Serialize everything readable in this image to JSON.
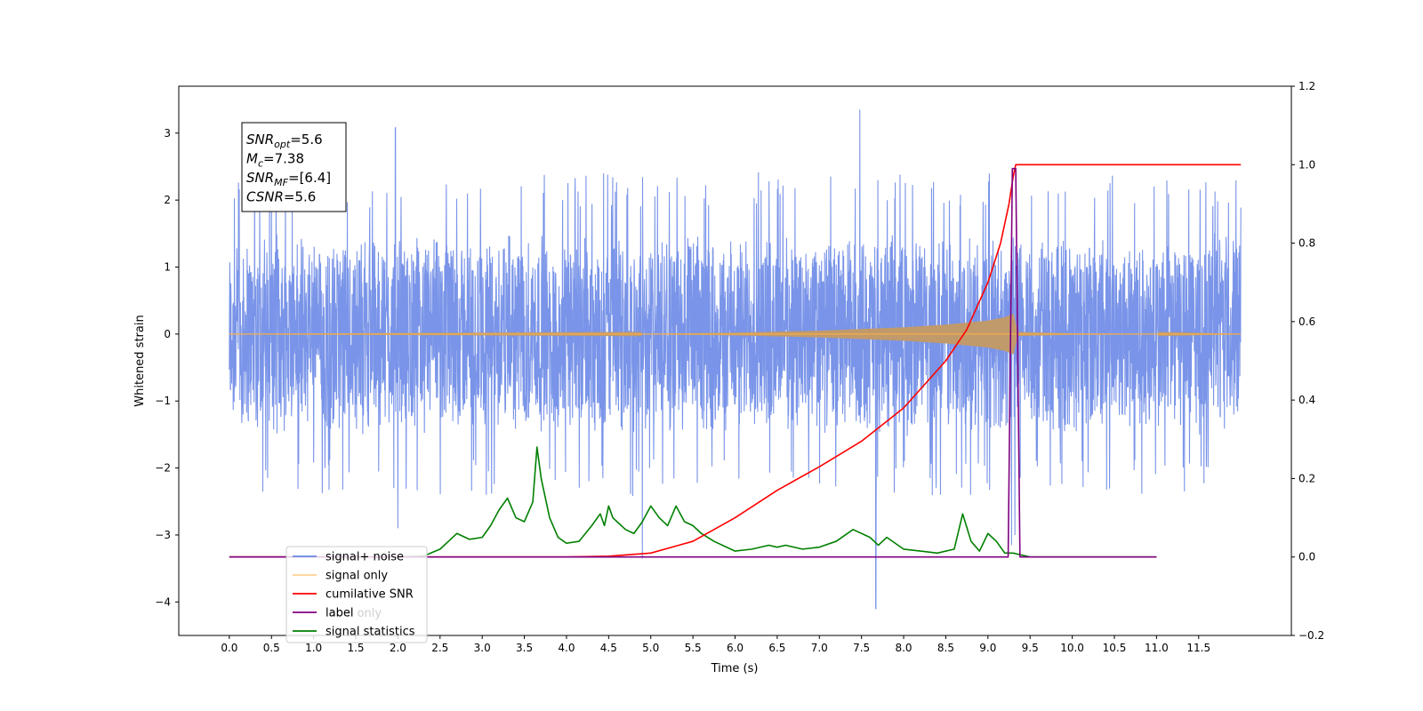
{
  "chart_data": {
    "type": "line",
    "xlabel": "Time (s)",
    "ylabel_left": "Whitened strain",
    "ylabel_right": "",
    "xlim": [
      -0.6,
      12.6
    ],
    "ylim_left": [
      -4.5,
      3.7
    ],
    "ylim_right": [
      -0.2,
      1.2
    ],
    "x_ticks": [
      0.0,
      0.5,
      1.0,
      1.5,
      2.0,
      2.5,
      3.0,
      3.5,
      4.0,
      4.5,
      5.0,
      5.5,
      6.0,
      6.5,
      7.0,
      7.5,
      8.0,
      8.5,
      9.0,
      9.5,
      10.0,
      10.5,
      11.0,
      11.5
    ],
    "x_tick_labels": [
      "0.0",
      "0.5",
      "1.0",
      "1.5",
      "2.0",
      "2.5",
      "3.0",
      "3.5",
      "4.0",
      "4.5",
      "5.0",
      "5.5",
      "6.0",
      "6.5",
      "7.0",
      "7.5",
      "8.0",
      "8.5",
      "9.0",
      "9.5",
      "10.0",
      "10.5",
      "11.0",
      "11.5"
    ],
    "y_ticks_left": [
      3,
      2,
      1,
      0,
      -1,
      -2,
      -3,
      -4
    ],
    "y_tick_labels_left": [
      "3",
      "2",
      "1",
      "0",
      "−1",
      "−2",
      "−3",
      "−4"
    ],
    "y_ticks_right": [
      1.2,
      1.0,
      0.8,
      0.6,
      0.4,
      0.2,
      0.0,
      -0.2
    ],
    "y_tick_labels_right": [
      "1.2",
      "1.0",
      "0.8",
      "0.6",
      "0.4",
      "0.2",
      "0.0",
      "−0.2"
    ],
    "grid": false,
    "legend_position": "lower-left",
    "annotation_box": {
      "lines": [
        {
          "sym": "SNR",
          "sub": "opt",
          "val": "=5.6"
        },
        {
          "sym": "M",
          "sub": "c",
          "val": "=7.38"
        },
        {
          "sym": "SNR",
          "sub": "MF",
          "val": "=[6.4]"
        },
        {
          "sym": "CSNR",
          "sub": "",
          "val": "=5.6"
        }
      ]
    },
    "series": [
      {
        "name": "signal+ noise",
        "axis": "left",
        "color": "#6a88e6",
        "kind": "noise",
        "t_range": [
          0.0,
          12.0
        ],
        "band_abs": 1.4,
        "typical_peak_abs": 2.2,
        "extremes": [
          {
            "x": 1.97,
            "y": 3.08
          },
          {
            "x": 2.0,
            "y": -2.9
          },
          {
            "x": 4.9,
            "y": -3.35
          },
          {
            "x": 7.48,
            "y": 3.35
          },
          {
            "x": 7.67,
            "y": -4.1
          },
          {
            "x": 9.28,
            "y": -3.15
          },
          {
            "x": 9.32,
            "y": -3.0
          }
        ]
      },
      {
        "name": "signal only",
        "axis": "left",
        "color": "#ffb347",
        "kind": "chirp",
        "t_range": [
          0.0,
          12.0
        ],
        "merger_time": 9.3,
        "envelope_x": [
          0.0,
          5.0,
          6.0,
          7.0,
          8.0,
          8.5,
          9.0,
          9.2,
          9.3,
          9.35,
          10.0,
          12.0
        ],
        "envelope_y": [
          0.0,
          0.005,
          0.02,
          0.05,
          0.1,
          0.14,
          0.2,
          0.25,
          0.3,
          0.03,
          0.01,
          0.0
        ]
      },
      {
        "name": "cumilative SNR",
        "axis": "right",
        "color": "#ff0000",
        "x": [
          0.0,
          4.0,
          4.5,
          5.0,
          5.5,
          6.0,
          6.5,
          7.0,
          7.5,
          8.0,
          8.5,
          8.75,
          9.0,
          9.15,
          9.25,
          9.3,
          9.33,
          12.0
        ],
        "y": [
          0.0,
          0.0,
          0.002,
          0.01,
          0.04,
          0.1,
          0.17,
          0.23,
          0.295,
          0.38,
          0.5,
          0.58,
          0.7,
          0.8,
          0.9,
          0.97,
          1.0,
          1.0
        ]
      },
      {
        "name": "label",
        "axis": "right",
        "color": "#800080",
        "x": [
          0.0,
          9.24,
          9.29,
          9.33,
          9.38,
          11.0
        ],
        "y": [
          0.0,
          0.0,
          0.99,
          0.99,
          0.0,
          0.0
        ]
      },
      {
        "name": "label only",
        "axis": "left",
        "color": "#cccccc",
        "kind": "legend-only"
      },
      {
        "name": "signal statistics",
        "axis": "right",
        "color": "#008000",
        "x": [
          0.0,
          2.0,
          2.3,
          2.5,
          2.7,
          2.85,
          3.0,
          3.1,
          3.2,
          3.3,
          3.4,
          3.5,
          3.6,
          3.65,
          3.7,
          3.8,
          3.9,
          4.0,
          4.15,
          4.3,
          4.4,
          4.45,
          4.5,
          4.55,
          4.6,
          4.7,
          4.8,
          4.9,
          5.0,
          5.1,
          5.2,
          5.3,
          5.4,
          5.5,
          5.6,
          5.75,
          6.0,
          6.2,
          6.4,
          6.5,
          6.6,
          6.8,
          7.0,
          7.2,
          7.4,
          7.6,
          7.7,
          7.8,
          8.0,
          8.2,
          8.4,
          8.6,
          8.7,
          8.8,
          8.9,
          9.0,
          9.1,
          9.2,
          9.3,
          9.5,
          11.0
        ],
        "y": [
          0.0,
          0.0,
          0.002,
          0.02,
          0.06,
          0.045,
          0.05,
          0.08,
          0.12,
          0.15,
          0.1,
          0.09,
          0.14,
          0.28,
          0.2,
          0.1,
          0.05,
          0.035,
          0.04,
          0.08,
          0.11,
          0.08,
          0.13,
          0.1,
          0.09,
          0.07,
          0.06,
          0.09,
          0.13,
          0.1,
          0.08,
          0.13,
          0.09,
          0.08,
          0.06,
          0.04,
          0.015,
          0.02,
          0.03,
          0.025,
          0.03,
          0.02,
          0.025,
          0.04,
          0.07,
          0.05,
          0.03,
          0.05,
          0.02,
          0.015,
          0.01,
          0.02,
          0.11,
          0.04,
          0.015,
          0.06,
          0.04,
          0.01,
          0.01,
          0.0,
          0.0
        ]
      }
    ]
  }
}
